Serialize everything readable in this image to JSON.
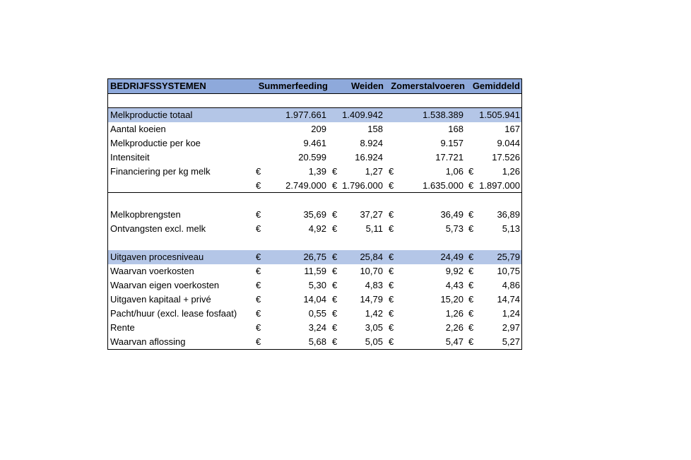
{
  "table": {
    "header": {
      "title": "BEDRIJFSSYSTEMEN",
      "columns": [
        "Summerfeeding",
        "Weiden",
        "Zomerstalvoeren",
        "Gemiddeld"
      ]
    },
    "currency_symbol": "€",
    "rows": [
      {
        "label": "Melkproductie totaal",
        "values": [
          "1.977.661",
          "1.409.942",
          "1.538.389",
          "1.505.941"
        ],
        "currency": false,
        "band": true
      },
      {
        "label": "Aantal koeien",
        "values": [
          "209",
          "158",
          "168",
          "167"
        ],
        "currency": false,
        "band": false
      },
      {
        "label": "Melkproductie per koe",
        "values": [
          "9.461",
          "8.924",
          "9.157",
          "9.044"
        ],
        "currency": false,
        "band": false
      },
      {
        "label": "Intensiteit",
        "values": [
          "20.599",
          "16.924",
          "17.721",
          "17.526"
        ],
        "currency": false,
        "band": false
      },
      {
        "label": "Financiering per kg melk",
        "values": [
          "1,39",
          "1,27",
          "1,06",
          "1,26"
        ],
        "currency": true,
        "band": false
      },
      {
        "label": "",
        "values": [
          "2.749.000",
          "1.796.000",
          "1.635.000",
          "1.897.000"
        ],
        "currency": true,
        "band": false
      },
      {
        "label": "Melkopbrengsten",
        "values": [
          "35,69",
          "37,27",
          "36,49",
          "36,89"
        ],
        "currency": true,
        "band": false
      },
      {
        "label": "Ontvangsten excl. melk",
        "values": [
          "4,92",
          "5,11",
          "5,73",
          "5,13"
        ],
        "currency": true,
        "band": false
      },
      {
        "label": "Uitgaven procesniveau",
        "values": [
          "26,75",
          "25,84",
          "24,49",
          "25,79"
        ],
        "currency": true,
        "band": true
      },
      {
        "label": "Waarvan voerkosten",
        "values": [
          "11,59",
          "10,70",
          "9,92",
          "10,75"
        ],
        "currency": true,
        "band": false
      },
      {
        "label": "Waarvan eigen voerkosten",
        "values": [
          "5,30",
          "4,83",
          "4,43",
          "4,86"
        ],
        "currency": true,
        "band": false
      },
      {
        "label": "Uitgaven kapitaal + privé",
        "values": [
          "14,04",
          "14,79",
          "15,20",
          "14,74"
        ],
        "currency": true,
        "band": false
      },
      {
        "label": "Pacht/huur (excl. lease fosfaat)",
        "values": [
          "0,55",
          "1,42",
          "1,26",
          "1,24"
        ],
        "currency": true,
        "band": false
      },
      {
        "label": "Rente",
        "values": [
          "3,24",
          "3,05",
          "2,26",
          "2,97"
        ],
        "currency": true,
        "band": false
      },
      {
        "label": "Waarvan aflossing",
        "values": [
          "5,68",
          "5,05",
          "5,47",
          "5,27"
        ],
        "currency": true,
        "band": false
      }
    ]
  }
}
